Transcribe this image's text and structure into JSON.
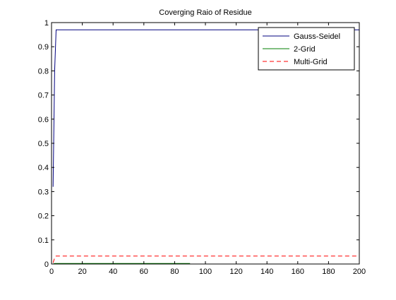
{
  "chart_data": {
    "type": "line",
    "title": "Coverging Raio of Residue",
    "xlabel": "",
    "ylabel": "",
    "xlim": [
      0,
      200
    ],
    "ylim": [
      0,
      1
    ],
    "xticks": [
      0,
      20,
      40,
      60,
      80,
      100,
      120,
      140,
      160,
      180,
      200
    ],
    "yticks": [
      0,
      0.1,
      0.2,
      0.3,
      0.4,
      0.5,
      0.6,
      0.7,
      0.8,
      0.9,
      1
    ],
    "ytick_labels": [
      "0",
      "0.1",
      "0.2",
      "0.3",
      "0.4",
      "0.5",
      "0.6",
      "0.7",
      "0.8",
      "0.9",
      "1"
    ],
    "grid": false,
    "legend_position": "top-right",
    "series": [
      {
        "name": "Gauss-Seidel",
        "color": "#00007f",
        "style": "solid",
        "x": [
          1,
          2,
          3,
          4,
          200
        ],
        "y": [
          0.32,
          0.8,
          0.97,
          0.97,
          0.97
        ]
      },
      {
        "name": "2-Grid",
        "color": "#007f00",
        "style": "solid",
        "x": [
          1,
          2,
          90
        ],
        "y": [
          0.0,
          0.002,
          0.002
        ]
      },
      {
        "name": "Multi-Grid",
        "color": "#ff0000",
        "style": "dashed",
        "x": [
          1,
          2,
          3,
          200
        ],
        "y": [
          0.005,
          0.025,
          0.033,
          0.033
        ]
      }
    ]
  }
}
